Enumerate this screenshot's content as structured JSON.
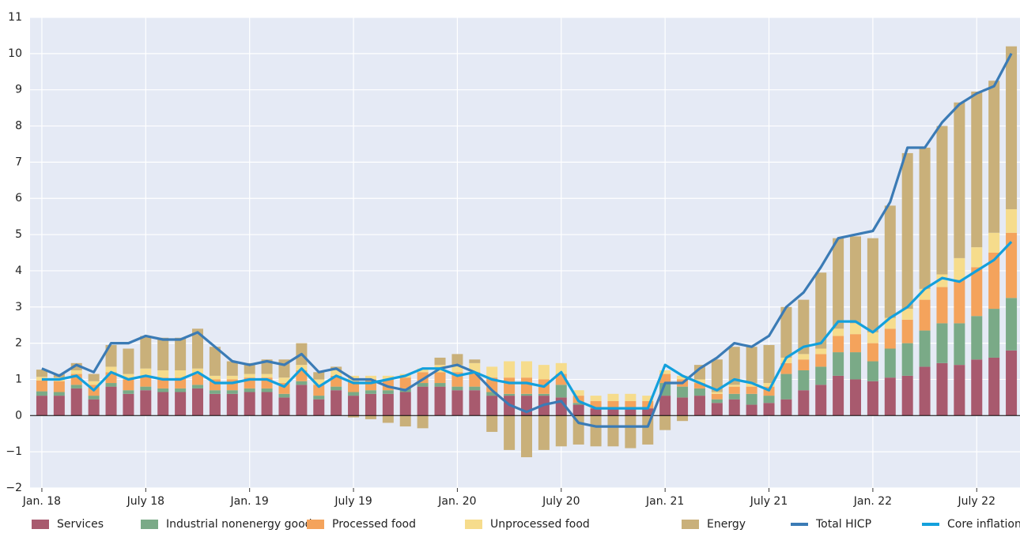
{
  "chart_data": {
    "type": "stacked_bar_line",
    "categories": [
      "Jan. 18",
      null,
      null,
      null,
      null,
      null,
      "July 18",
      null,
      null,
      null,
      null,
      null,
      "Jan. 19",
      null,
      null,
      null,
      null,
      null,
      "July 19",
      null,
      null,
      null,
      null,
      null,
      "Jan. 20",
      null,
      null,
      null,
      null,
      null,
      "July 20",
      null,
      null,
      null,
      null,
      null,
      "Jan. 21",
      null,
      null,
      null,
      null,
      null,
      "July 21",
      null,
      null,
      null,
      null,
      null,
      "Jan. 22",
      null,
      null,
      null,
      null,
      null,
      "July 22",
      null,
      null
    ],
    "series": [
      {
        "name": "Services",
        "color": "#a85a6e",
        "kind": "bar",
        "values": [
          0.55,
          0.55,
          0.75,
          0.45,
          0.8,
          0.6,
          0.7,
          0.65,
          0.65,
          0.75,
          0.6,
          0.6,
          0.65,
          0.65,
          0.5,
          0.85,
          0.45,
          0.7,
          0.55,
          0.6,
          0.6,
          0.65,
          0.8,
          0.8,
          0.7,
          0.7,
          0.55,
          0.55,
          0.55,
          0.55,
          0.5,
          0.3,
          0.2,
          0.2,
          0.2,
          0.2,
          0.55,
          0.5,
          0.55,
          0.35,
          0.45,
          0.3,
          0.35,
          0.45,
          0.7,
          0.85,
          1.1,
          1.0,
          0.95,
          1.05,
          1.1,
          1.35,
          1.45,
          1.4,
          1.55,
          1.6,
          1.8
        ]
      },
      {
        "name": "Industrial nonenergy goods",
        "color": "#7aaa87",
        "kind": "bar",
        "values": [
          0.12,
          0.1,
          0.1,
          0.1,
          0.1,
          0.1,
          0.1,
          0.1,
          0.1,
          0.1,
          0.1,
          0.1,
          0.1,
          0.1,
          0.1,
          0.1,
          0.1,
          0.1,
          0.1,
          0.1,
          0.1,
          0.1,
          0.1,
          0.1,
          0.1,
          0.1,
          0.1,
          0.05,
          0.05,
          0.05,
          0.35,
          0.05,
          0,
          0,
          0,
          0,
          0.35,
          0.3,
          0.2,
          0.1,
          0.15,
          0.3,
          0.2,
          0.7,
          0.55,
          0.5,
          0.65,
          0.75,
          0.55,
          0.8,
          0.9,
          1.0,
          1.1,
          1.15,
          1.2,
          1.35,
          1.45
        ]
      },
      {
        "name": "Processed food",
        "color": "#f4a35c",
        "kind": "bar",
        "values": [
          0.3,
          0.3,
          0.3,
          0.3,
          0.3,
          0.3,
          0.3,
          0.3,
          0.3,
          0.3,
          0.3,
          0.3,
          0.3,
          0.3,
          0.3,
          0.3,
          0.3,
          0.3,
          0.3,
          0.3,
          0.3,
          0.3,
          0.3,
          0.3,
          0.4,
          0.4,
          0.4,
          0.45,
          0.45,
          0.4,
          0.3,
          0.2,
          0.2,
          0.2,
          0.2,
          0.2,
          0.25,
          0.2,
          0.15,
          0.15,
          0.2,
          0.2,
          0.25,
          0.3,
          0.3,
          0.35,
          0.45,
          0.5,
          0.5,
          0.55,
          0.65,
          0.85,
          1.0,
          1.2,
          1.35,
          1.55,
          1.8
        ]
      },
      {
        "name": "Unprocessed food",
        "color": "#f6dc8c",
        "kind": "bar",
        "values": [
          0.1,
          0.1,
          0.1,
          0.1,
          0.15,
          0.15,
          0.2,
          0.2,
          0.2,
          0.15,
          0.1,
          0.1,
          0.1,
          0.1,
          0.15,
          0.15,
          0.15,
          0.15,
          0.15,
          0.1,
          0.1,
          0.1,
          0.1,
          0.2,
          0.2,
          0.25,
          0.3,
          0.45,
          0.45,
          0.4,
          0.3,
          0.15,
          0.15,
          0.2,
          0.2,
          0.15,
          0.1,
          0.1,
          0.1,
          0.05,
          0.05,
          0.1,
          0.1,
          0.15,
          0.15,
          0.15,
          0.2,
          0.3,
          0.3,
          0.3,
          0.3,
          0.3,
          0.35,
          0.6,
          0.55,
          0.55,
          0.65
        ]
      },
      {
        "name": "Energy",
        "color": "#c9b07a",
        "kind": "bar",
        "values": [
          0.2,
          0.1,
          0.2,
          0.2,
          0.6,
          0.7,
          0.9,
          0.9,
          0.9,
          1.1,
          0.8,
          0.4,
          0.3,
          0.4,
          0.5,
          0.6,
          0.2,
          0.1,
          -0.05,
          -0.1,
          -0.2,
          -0.3,
          -0.35,
          0.2,
          0.3,
          0.1,
          -0.45,
          -0.95,
          -1.15,
          -0.95,
          -0.85,
          -0.8,
          -0.85,
          -0.85,
          -0.9,
          -0.8,
          -0.4,
          -0.15,
          0.4,
          0.9,
          1.05,
          1.0,
          1.05,
          1.4,
          1.5,
          2.1,
          2.5,
          2.4,
          2.6,
          3.1,
          4.3,
          3.9,
          4.1,
          4.3,
          4.3,
          4.2,
          4.5
        ]
      },
      {
        "name": "Total HICP",
        "color": "#3b7bb5",
        "kind": "line",
        "values": [
          1.3,
          1.1,
          1.4,
          1.2,
          2.0,
          2.0,
          2.2,
          2.1,
          2.1,
          2.3,
          1.9,
          1.5,
          1.4,
          1.5,
          1.4,
          1.7,
          1.2,
          1.3,
          1.0,
          1.0,
          0.8,
          0.7,
          1.0,
          1.3,
          1.4,
          1.2,
          0.7,
          0.3,
          0.1,
          0.3,
          0.4,
          -0.2,
          -0.3,
          -0.3,
          -0.3,
          -0.3,
          0.9,
          0.9,
          1.3,
          1.6,
          2.0,
          1.9,
          2.2,
          3.0,
          3.4,
          4.1,
          4.9,
          5.0,
          5.1,
          5.9,
          7.4,
          7.4,
          8.1,
          8.6,
          8.9,
          9.1,
          10.0
        ]
      },
      {
        "name": "Core inflation",
        "color": "#13a0dc",
        "kind": "line",
        "values": [
          1.0,
          1.0,
          1.1,
          0.7,
          1.2,
          1.0,
          1.1,
          1.0,
          1.0,
          1.2,
          0.9,
          0.9,
          1.0,
          1.0,
          0.8,
          1.3,
          0.8,
          1.1,
          0.9,
          0.9,
          1.0,
          1.1,
          1.3,
          1.3,
          1.1,
          1.2,
          1.0,
          0.9,
          0.9,
          0.8,
          1.2,
          0.4,
          0.2,
          0.2,
          0.2,
          0.2,
          1.4,
          1.1,
          0.9,
          0.7,
          1.0,
          0.9,
          0.7,
          1.6,
          1.9,
          2.0,
          2.6,
          2.6,
          2.3,
          2.7,
          3.0,
          3.5,
          3.8,
          3.7,
          4.0,
          4.3,
          4.8
        ]
      }
    ],
    "ylim": [
      -2,
      11
    ],
    "yticks": [
      {
        "value": -2,
        "label": "−2"
      },
      {
        "value": -1,
        "label": "−1"
      },
      0,
      1,
      2,
      3,
      4,
      5,
      6,
      7,
      8,
      9,
      10,
      11
    ],
    "grid": true,
    "legend": "bottom"
  }
}
